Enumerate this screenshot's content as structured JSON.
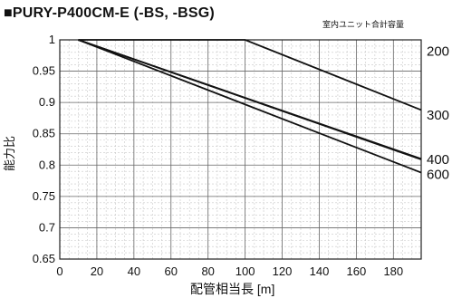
{
  "chart_data": {
    "type": "line",
    "title": "■PURY-P400CM-E (-BS, -BSG)",
    "xlabel": "配管相当長 [m]",
    "ylabel": "能力比",
    "legend_title": "室内ユニット合計容量",
    "xlim": [
      0,
      195
    ],
    "ylim": [
      0.65,
      1.0
    ],
    "x_ticks": [
      0,
      20,
      40,
      60,
      80,
      100,
      120,
      140,
      160,
      180
    ],
    "y_ticks": [
      0.65,
      0.7,
      0.75,
      0.8,
      0.85,
      0.9,
      0.95,
      1
    ],
    "y_tick_labels": [
      "0.65",
      "0.7",
      "0.75",
      "0.8",
      "0.85",
      "0.9",
      "0.95",
      "1"
    ],
    "grid": true,
    "legend_placement": "right",
    "series": [
      {
        "name": "200",
        "x": [
          10,
          100,
          195
        ],
        "y": [
          1.0,
          1.0,
          0.888
        ]
      },
      {
        "name": "300",
        "x": [
          10,
          195
        ],
        "y": [
          1.0,
          0.809
        ]
      },
      {
        "name": "400",
        "x": [
          10,
          195
        ],
        "y": [
          1.0,
          0.81
        ]
      },
      {
        "name": "600",
        "x": [
          10,
          195
        ],
        "y": [
          1.0,
          0.788
        ]
      }
    ],
    "series_label_values": [
      0.982,
      0.88,
      0.809,
      0.785
    ]
  }
}
